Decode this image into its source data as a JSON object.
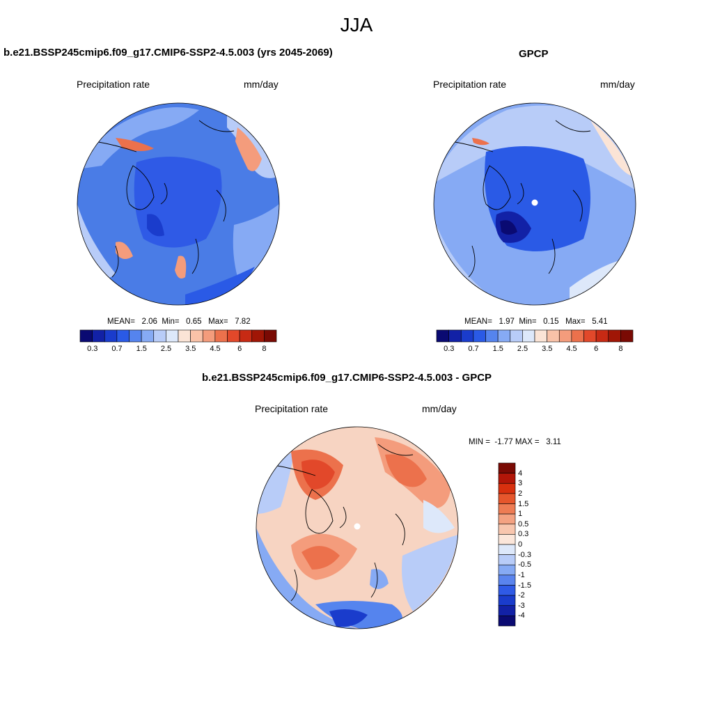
{
  "figure": {
    "season": "JJA"
  },
  "panels": {
    "model": {
      "title": "b.e21.BSSP245cmip6.f09_g17.CMIP6-SSP2-4.5.003 (yrs 2045-2069)",
      "left_label": "Precipitation rate",
      "right_label": "mm/day",
      "stats": {
        "mean_label": "MEAN=",
        "mean": "2.06",
        "min_label": "Min=",
        "min": "0.65",
        "max_label": "Max=",
        "max": "7.82"
      }
    },
    "obs": {
      "title": "GPCP",
      "left_label": "Precipitation rate",
      "right_label": "mm/day",
      "stats": {
        "mean_label": "MEAN=",
        "mean": "1.97",
        "min_label": "Min=",
        "min": "0.15",
        "max_label": "Max=",
        "max": "5.41"
      }
    },
    "diff": {
      "title": "b.e21.BSSP245cmip6.f09_g17.CMIP6-SSP2-4.5.003 - GPCP",
      "left_label": "Precipitation rate",
      "right_label": "mm/day",
      "stats": {
        "min_label": "MIN =",
        "min": "-1.77",
        "max_label": "MAX =",
        "max": "3.11"
      }
    }
  },
  "colorbars": {
    "abs": {
      "colors": [
        "#0a0a72",
        "#1221a6",
        "#1a3ccc",
        "#2a5ae6",
        "#5584ee",
        "#86aaf4",
        "#b8ccf8",
        "#dde8fa",
        "#fbe4d6",
        "#f9c2a8",
        "#f49c7c",
        "#ec714c",
        "#e2482a",
        "#c72a14",
        "#a01606",
        "#7a0a04"
      ],
      "labels": [
        "0.3",
        "0.7",
        "1.5",
        "2.5",
        "3.5",
        "4.5",
        "6",
        "8"
      ]
    },
    "diff": {
      "colors": [
        "#7a0a04",
        "#b21608",
        "#d8300e",
        "#e6562c",
        "#ee7c54",
        "#f4a282",
        "#f8c6ae",
        "#fbe6da",
        "#dde8fa",
        "#b8ccf8",
        "#86aaf4",
        "#5a84ee",
        "#2f5ae6",
        "#1a3ccc",
        "#1221a6",
        "#0a0a72"
      ],
      "labels": [
        "4",
        "3",
        "2",
        "1.5",
        "1",
        "0.5",
        "0.3",
        "0",
        "-0.3",
        "-0.5",
        "-1",
        "-1.5",
        "-2",
        "-3",
        "-4"
      ]
    }
  },
  "map_fills": {
    "model_background": "#4a7ce6",
    "obs_background": "#7fa6f2",
    "diff_background": "#f7d4c2",
    "missing_pole": "#ffffff"
  }
}
